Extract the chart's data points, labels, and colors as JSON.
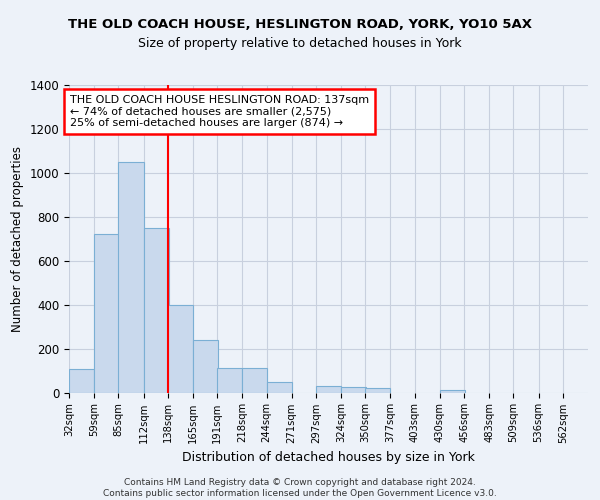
{
  "title1": "THE OLD COACH HOUSE, HESLINGTON ROAD, YORK, YO10 5AX",
  "title2": "Size of property relative to detached houses in York",
  "xlabel": "Distribution of detached houses by size in York",
  "ylabel": "Number of detached properties",
  "bins": [
    32,
    59,
    85,
    112,
    138,
    165,
    191,
    218,
    244,
    271,
    297,
    324,
    350,
    377,
    403,
    430,
    456,
    483,
    509,
    536,
    562
  ],
  "values": [
    105,
    720,
    1050,
    750,
    400,
    240,
    110,
    110,
    47,
    0,
    28,
    27,
    20,
    0,
    0,
    10,
    0,
    0,
    0,
    0,
    0
  ],
  "bar_color": "#c9d9ed",
  "bar_edge_color": "#7bafd4",
  "red_line_x": 138,
  "ylim": [
    0,
    1400
  ],
  "yticks": [
    0,
    200,
    400,
    600,
    800,
    1000,
    1200,
    1400
  ],
  "annotation_text": "THE OLD COACH HOUSE HESLINGTON ROAD: 137sqm\n← 74% of detached houses are smaller (2,575)\n25% of semi-detached houses are larger (874) →",
  "footer": "Contains HM Land Registry data © Crown copyright and database right 2024.\nContains public sector information licensed under the Open Government Licence v3.0.",
  "bg_color": "#edf2f9",
  "plot_bg_color": "#edf2f9",
  "grid_color": "#c8d0de"
}
